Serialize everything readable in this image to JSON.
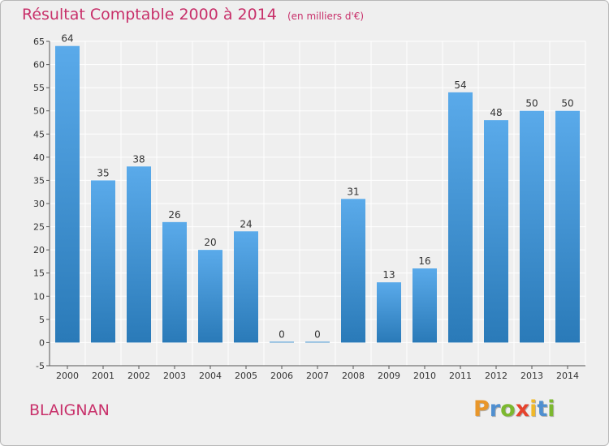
{
  "title": "Résultat Comptable 2000 à 2014",
  "subtitle": "(en milliers d'€)",
  "commune": "BLAIGNAN",
  "logo": {
    "letters": [
      "P",
      "r",
      "o",
      "x",
      "i",
      "t",
      "i"
    ],
    "colors": [
      "#e8962a",
      "#4f8fd0",
      "#7cb82f",
      "#e6432d",
      "#f0b82a",
      "#4f8fd0",
      "#7cb82f"
    ]
  },
  "colors": {
    "bar_light": "#5aaaea",
    "bar_dark": "#2a7ab8",
    "text": "#c8306a",
    "grid": "#ffffff",
    "background": "#efefef"
  },
  "chart_data": {
    "type": "bar",
    "title": "Résultat Comptable 2000 à 2014",
    "categories": [
      "2000",
      "2001",
      "2002",
      "2003",
      "2004",
      "2005",
      "2006",
      "2007",
      "2008",
      "2009",
      "2010",
      "2011",
      "2012",
      "2013",
      "2014"
    ],
    "values": [
      64,
      35,
      38,
      26,
      20,
      24,
      0,
      0,
      31,
      13,
      16,
      54,
      48,
      50,
      50
    ],
    "value_labels": [
      "64",
      "35",
      "38",
      "26",
      "20",
      "24",
      "0",
      "0",
      "31",
      "13",
      "16",
      "54",
      "48",
      "50",
      "50"
    ],
    "yticks": [
      -5,
      0,
      5,
      10,
      15,
      20,
      25,
      30,
      35,
      40,
      45,
      50,
      55,
      60,
      65
    ],
    "ytick_labels": [
      "-5",
      "0",
      "5",
      "10",
      "15",
      "20",
      "25",
      "30",
      "35",
      "40",
      "45",
      "50",
      "55",
      "60",
      "65"
    ],
    "ylim": [
      -5,
      65
    ],
    "grid": true,
    "xlabel": "",
    "ylabel": ""
  }
}
